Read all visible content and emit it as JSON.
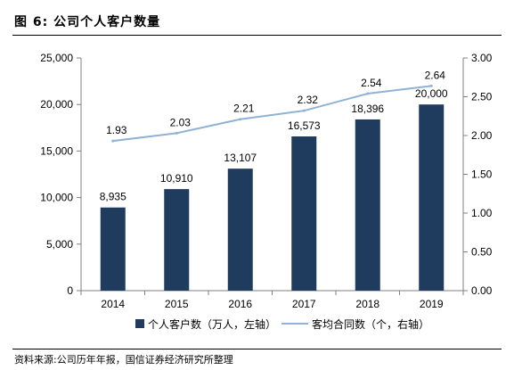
{
  "figure": {
    "title": "图 6: 公司个人客户数量",
    "source": "资料来源:公司历年年报，国信证券经济研究所整理"
  },
  "colors": {
    "bar": "#1f3b5e",
    "line": "#8fb3d6",
    "axis": "#808080"
  },
  "chart_data": {
    "type": "bar",
    "categories": [
      "2014",
      "2015",
      "2016",
      "2017",
      "2018",
      "2019"
    ],
    "series": [
      {
        "name": "个人客户数（万人，左轴）",
        "type": "bar",
        "axis": "left",
        "values": [
          8935,
          10910,
          13107,
          16573,
          18396,
          20000
        ],
        "labels": [
          "8,935",
          "10,910",
          "13,107",
          "16,573",
          "18,396",
          "20,000"
        ]
      },
      {
        "name": "客均合同数（个，右轴）",
        "type": "line",
        "axis": "right",
        "values": [
          1.93,
          2.03,
          2.21,
          2.32,
          2.54,
          2.64
        ],
        "labels": [
          "1.93",
          "2.03",
          "2.21",
          "2.32",
          "2.54",
          "2.64"
        ]
      }
    ],
    "y_left": {
      "range": [
        0,
        25000
      ],
      "ticks": [
        0,
        5000,
        10000,
        15000,
        20000,
        25000
      ],
      "tick_labels": [
        "0",
        "5,000",
        "10,000",
        "15,000",
        "20,000",
        "25,000"
      ]
    },
    "y_right": {
      "range": [
        0,
        3
      ],
      "ticks": [
        0,
        0.5,
        1,
        1.5,
        2,
        2.5,
        3
      ],
      "tick_labels": [
        "0.00",
        "0.50",
        "1.00",
        "1.50",
        "2.00",
        "2.50",
        "3.00"
      ]
    },
    "grid": false,
    "legend_position": "bottom"
  }
}
